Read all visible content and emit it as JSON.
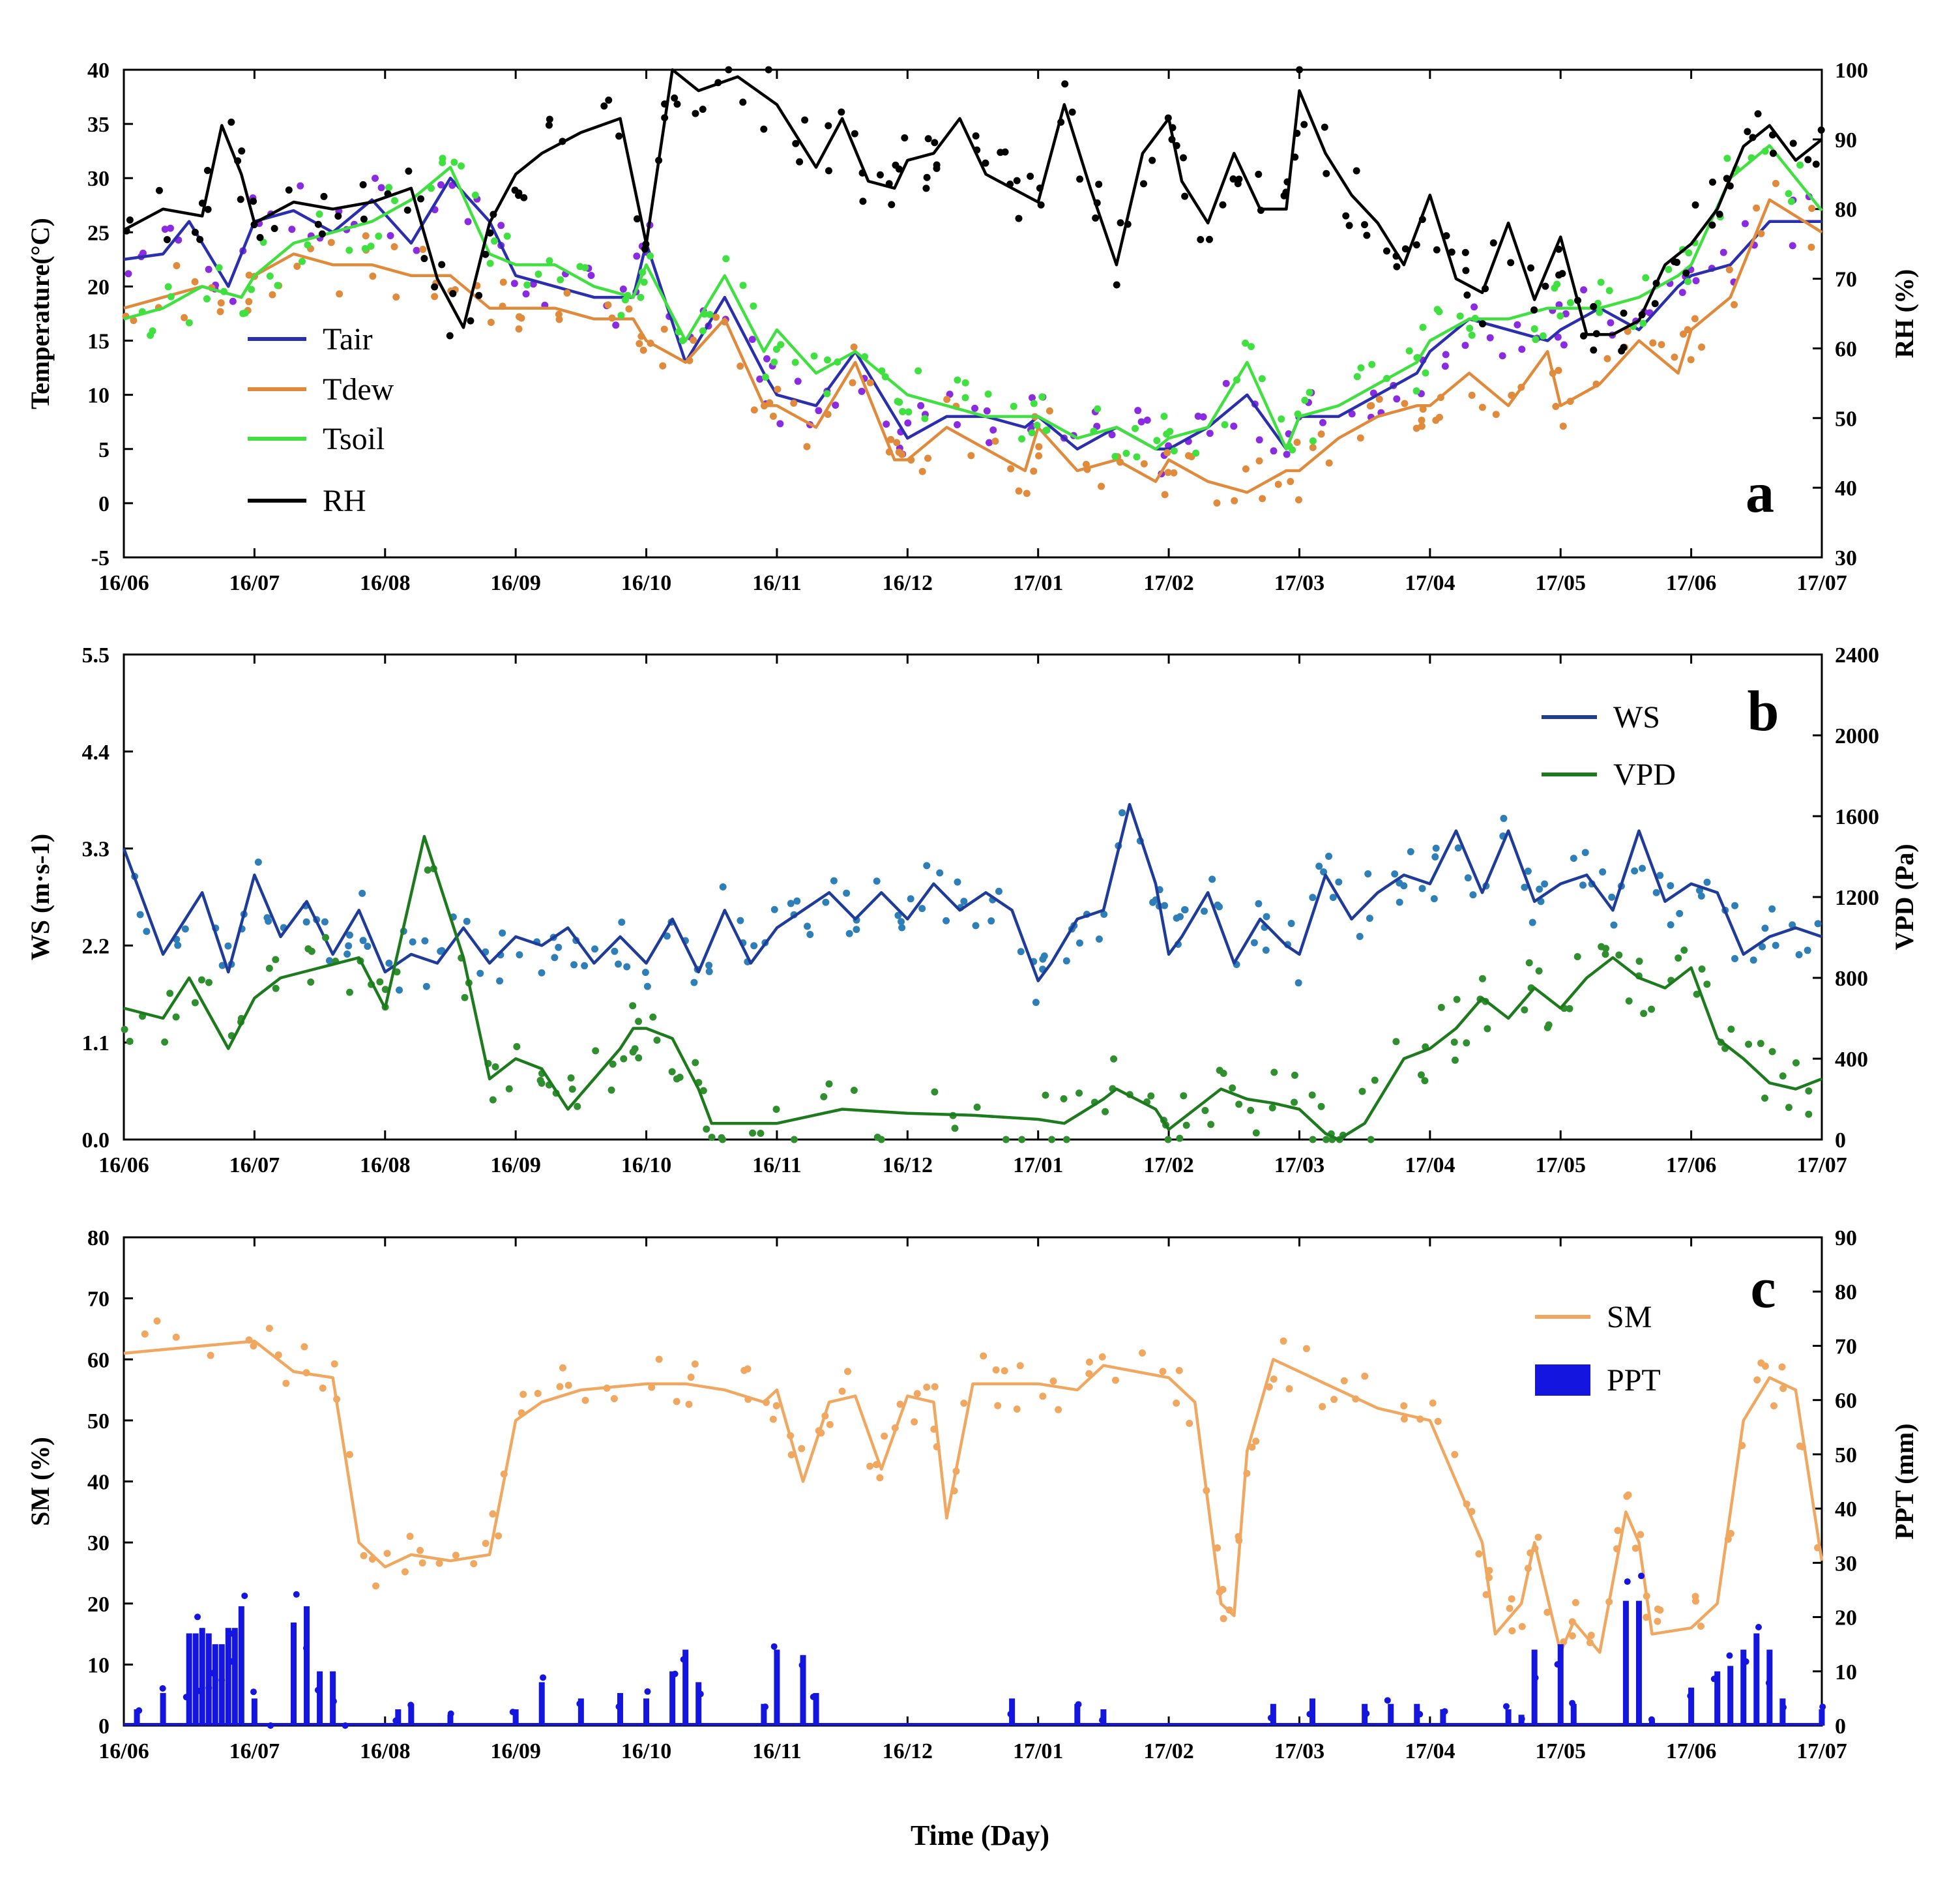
{
  "xlabel": "Time (Day)",
  "xticks": [
    "16/06",
    "16/07",
    "16/08",
    "16/09",
    "16/10",
    "16/11",
    "16/12",
    "17/01",
    "17/02",
    "17/03",
    "17/04",
    "17/05",
    "17/06",
    "17/07"
  ],
  "colors": {
    "Tair": "#2b2fae",
    "Tdew": "#e08a3c",
    "Tsoil": "#3fe040",
    "RH": "#000000",
    "Tair_pts": "#8a2be2",
    "WS": "#1f3c99",
    "WS_pts": "#2e7fb8",
    "VPD": "#1d7a1d",
    "VPD_pts": "#2f8f2f",
    "SM": "#f0a860",
    "PPT": "#1515e0"
  },
  "chart_data": [
    {
      "panel": "a",
      "type": "line",
      "ylabel": "Temperature(°C)",
      "ylim": [
        -5,
        40
      ],
      "yticks": [
        "40",
        "35",
        "30",
        "25",
        "20",
        "15",
        "10",
        "5",
        "0",
        "-5"
      ],
      "y2label": "RH (%)",
      "y2lim": [
        30,
        100
      ],
      "y2ticks": [
        "100",
        "90",
        "80",
        "70",
        "60",
        "50",
        "40",
        "30"
      ],
      "legend": [
        "Tair",
        "Tdew",
        "Tsoil",
        "RH"
      ],
      "series": [
        {
          "name": "Tair",
          "axis": "left",
          "x": [
            0,
            0.3,
            0.5,
            0.8,
            1.0,
            1.3,
            1.6,
            1.9,
            2.2,
            2.5,
            2.8,
            3.0,
            3.3,
            3.6,
            3.9,
            4.0,
            4.3,
            4.6,
            4.9,
            5.0,
            5.3,
            5.6,
            5.9,
            6.0,
            6.3,
            6.6,
            6.9,
            7.0,
            7.3,
            7.6,
            7.9,
            8.0,
            8.3,
            8.6,
            8.9,
            9.0,
            9.3,
            9.6,
            9.9,
            10.0,
            10.3,
            10.6,
            10.9,
            11.0,
            11.3,
            11.6,
            11.9,
            12.0,
            12.3,
            12.6,
            13.0
          ],
          "y": [
            22.5,
            23,
            26,
            20,
            26,
            27,
            25,
            28,
            24,
            30,
            26,
            21,
            20,
            19,
            19,
            24,
            13,
            19,
            12,
            10,
            9,
            14,
            8,
            6,
            8,
            8,
            7,
            8,
            5,
            7,
            5,
            5,
            7,
            10,
            5,
            8,
            8,
            10,
            12,
            14,
            17,
            16,
            15,
            16,
            18,
            16,
            20,
            21,
            22,
            26,
            26
          ]
        },
        {
          "name": "Tdew",
          "axis": "left",
          "x": [
            0,
            0.3,
            0.6,
            0.9,
            1.0,
            1.3,
            1.6,
            1.9,
            2.2,
            2.5,
            2.8,
            3.0,
            3.3,
            3.6,
            3.9,
            4.0,
            4.3,
            4.6,
            4.9,
            5.0,
            5.3,
            5.6,
            5.9,
            6.0,
            6.3,
            6.6,
            6.9,
            7.0,
            7.3,
            7.6,
            7.9,
            8.0,
            8.3,
            8.6,
            8.9,
            9.0,
            9.3,
            9.6,
            9.9,
            10.0,
            10.3,
            10.6,
            10.9,
            11.0,
            11.3,
            11.6,
            11.9,
            12.0,
            12.3,
            12.6,
            13.0
          ],
          "y": [
            18,
            19,
            20,
            19,
            21,
            23,
            22,
            22,
            21,
            21,
            18,
            18,
            18,
            17,
            17,
            15,
            13,
            17,
            9,
            9,
            7,
            13,
            4,
            4,
            7,
            5,
            3,
            7,
            3,
            4,
            2,
            4,
            2,
            1,
            3,
            3,
            6,
            8,
            9,
            9,
            12,
            9,
            14,
            9,
            11,
            15,
            12,
            16,
            19,
            28,
            25
          ]
        },
        {
          "name": "Tsoil",
          "axis": "left",
          "x": [
            0,
            0.3,
            0.6,
            0.9,
            1.0,
            1.3,
            1.6,
            1.9,
            2.2,
            2.5,
            2.8,
            3.0,
            3.3,
            3.6,
            3.9,
            4.0,
            4.3,
            4.6,
            4.9,
            5.0,
            5.3,
            5.6,
            5.9,
            6.0,
            6.3,
            6.6,
            6.9,
            7.0,
            7.3,
            7.6,
            7.9,
            8.0,
            8.3,
            8.6,
            8.9,
            9.0,
            9.3,
            9.6,
            9.9,
            10.0,
            10.3,
            10.6,
            10.9,
            11.0,
            11.3,
            11.6,
            11.9,
            12.0,
            12.3,
            12.6,
            13.0
          ],
          "y": [
            17,
            18,
            20,
            19,
            21,
            24,
            25,
            26,
            28,
            31,
            23,
            22,
            22,
            20,
            19,
            22,
            15,
            21,
            14,
            16,
            12,
            14,
            11,
            10,
            9,
            8,
            8,
            8,
            6,
            7,
            5,
            6,
            7,
            13,
            5,
            8,
            9,
            11,
            13,
            15,
            17,
            17,
            18,
            18,
            18,
            19,
            21,
            22,
            30,
            33,
            27
          ]
        },
        {
          "name": "RH",
          "axis": "right",
          "x": [
            0,
            0.3,
            0.6,
            0.75,
            0.9,
            1.0,
            1.3,
            1.6,
            1.9,
            2.2,
            2.4,
            2.6,
            2.8,
            3.0,
            3.2,
            3.5,
            3.8,
            4.0,
            4.2,
            4.4,
            4.7,
            5.0,
            5.3,
            5.5,
            5.7,
            5.9,
            6.0,
            6.2,
            6.4,
            6.6,
            6.8,
            7.0,
            7.2,
            7.4,
            7.6,
            7.8,
            8.0,
            8.1,
            8.3,
            8.5,
            8.7,
            8.9,
            9.0,
            9.2,
            9.4,
            9.6,
            9.8,
            10.0,
            10.2,
            10.4,
            10.6,
            10.8,
            11.0,
            11.2,
            11.4,
            11.6,
            11.8,
            12.0,
            12.2,
            12.4,
            12.6,
            12.8,
            13.0
          ],
          "y": [
            77,
            80,
            79,
            92,
            85,
            78,
            81,
            80,
            81,
            83,
            70,
            63,
            78,
            85,
            88,
            91,
            93,
            75,
            100,
            97,
            99,
            95,
            86,
            93,
            84,
            83,
            87,
            88,
            93,
            85,
            83,
            81,
            95,
            83,
            72,
            88,
            93,
            84,
            78,
            88,
            80,
            80,
            97,
            88,
            82,
            78,
            72,
            82,
            70,
            68,
            78,
            67,
            76,
            62,
            62,
            64,
            72,
            75,
            80,
            89,
            92,
            87,
            90
          ]
        }
      ]
    },
    {
      "panel": "b",
      "type": "line",
      "ylabel": "WS (m·s-1)",
      "ylim": [
        0,
        5.5
      ],
      "yticks": [
        "5.5",
        "4.4",
        "3.3",
        "2.2",
        "1.1",
        "0.0"
      ],
      "y2label": "VPD (Pa)",
      "y2lim": [
        0,
        2400
      ],
      "y2ticks": [
        "2400",
        "2000",
        "1600",
        "1200",
        "800",
        "400",
        "0"
      ],
      "legend": [
        "WS",
        "VPD"
      ],
      "series": [
        {
          "name": "WS",
          "axis": "left",
          "x": [
            0,
            0.3,
            0.6,
            0.8,
            1.0,
            1.2,
            1.4,
            1.6,
            1.8,
            2.0,
            2.2,
            2.4,
            2.6,
            2.8,
            3.0,
            3.2,
            3.4,
            3.6,
            3.8,
            4.0,
            4.2,
            4.4,
            4.6,
            4.8,
            5.0,
            5.2,
            5.4,
            5.6,
            5.8,
            6.0,
            6.2,
            6.4,
            6.6,
            6.8,
            7.0,
            7.1,
            7.3,
            7.5,
            7.7,
            7.9,
            8.0,
            8.1,
            8.3,
            8.5,
            8.7,
            8.9,
            9.0,
            9.2,
            9.4,
            9.6,
            9.8,
            10.0,
            10.2,
            10.4,
            10.6,
            10.8,
            11.0,
            11.2,
            11.4,
            11.6,
            11.8,
            12.0,
            12.2,
            12.4,
            12.6,
            12.8,
            13.0
          ],
          "y": [
            3.3,
            2.1,
            2.8,
            1.9,
            3.0,
            2.3,
            2.7,
            2.1,
            2.6,
            1.9,
            2.1,
            2.0,
            2.4,
            2.0,
            2.3,
            2.2,
            2.4,
            2.0,
            2.3,
            2.0,
            2.5,
            1.9,
            2.6,
            2.0,
            2.4,
            2.6,
            2.8,
            2.5,
            2.8,
            2.5,
            2.9,
            2.6,
            2.8,
            2.6,
            1.8,
            2.0,
            2.5,
            2.6,
            3.8,
            2.9,
            2.1,
            2.3,
            2.8,
            2.0,
            2.5,
            2.2,
            2.1,
            3.0,
            2.5,
            2.8,
            3.0,
            2.9,
            3.5,
            2.8,
            3.5,
            2.7,
            2.9,
            3.0,
            2.6,
            3.5,
            2.7,
            2.9,
            2.8,
            2.1,
            2.3,
            2.4,
            2.3
          ]
        },
        {
          "name": "VPD",
          "axis": "right",
          "x": [
            0,
            0.3,
            0.5,
            0.8,
            1.0,
            1.2,
            1.5,
            1.8,
            2.0,
            2.3,
            2.6,
            2.8,
            3.0,
            3.2,
            3.4,
            3.6,
            3.8,
            3.9,
            4.0,
            4.2,
            4.4,
            4.5,
            4.6,
            5.0,
            5.5,
            6.0,
            6.5,
            7.0,
            7.2,
            7.5,
            7.6,
            7.9,
            8.0,
            8.2,
            8.4,
            8.6,
            8.8,
            9.0,
            9.2,
            9.3,
            9.5,
            9.8,
            10.0,
            10.2,
            10.4,
            10.6,
            10.8,
            11.0,
            11.2,
            11.4,
            11.6,
            11.8,
            12.0,
            12.2,
            12.4,
            12.6,
            12.8,
            13.0
          ],
          "y": [
            650,
            600,
            800,
            450,
            700,
            800,
            850,
            900,
            650,
            1500,
            900,
            300,
            400,
            350,
            150,
            300,
            450,
            550,
            550,
            500,
            250,
            80,
            80,
            80,
            150,
            130,
            120,
            100,
            80,
            200,
            250,
            150,
            50,
            150,
            250,
            200,
            180,
            150,
            30,
            0,
            80,
            400,
            450,
            550,
            700,
            600,
            750,
            650,
            800,
            900,
            800,
            750,
            850,
            500,
            400,
            280,
            250,
            300
          ]
        }
      ]
    },
    {
      "panel": "c",
      "type": "line",
      "ylabel": "SM (%)",
      "ylim": [
        0,
        80
      ],
      "yticks": [
        "80",
        "70",
        "60",
        "50",
        "40",
        "30",
        "20",
        "10",
        "0"
      ],
      "y2label": "PPT (mm)",
      "y2lim": [
        0,
        90
      ],
      "y2ticks": [
        "90",
        "80",
        "70",
        "60",
        "50",
        "40",
        "30",
        "20",
        "10",
        "0"
      ],
      "legend": [
        "SM",
        "PPT"
      ],
      "series": [
        {
          "name": "SM",
          "axis": "left",
          "x": [
            0,
            0.5,
            1.0,
            1.3,
            1.6,
            1.8,
            2.0,
            2.2,
            2.5,
            2.8,
            3.0,
            3.2,
            3.5,
            4.0,
            4.3,
            4.6,
            4.9,
            5.0,
            5.2,
            5.4,
            5.6,
            5.8,
            6.0,
            6.2,
            6.3,
            6.5,
            6.7,
            7.0,
            7.3,
            7.5,
            8.0,
            8.2,
            8.4,
            8.5,
            8.6,
            8.8,
            9.0,
            9.3,
            9.6,
            10.0,
            10.2,
            10.4,
            10.5,
            10.7,
            10.8,
            11.0,
            11.1,
            11.3,
            11.5,
            11.6,
            11.7,
            12.0,
            12.2,
            12.4,
            12.6,
            12.8,
            13.0
          ],
          "y": [
            61,
            62,
            63,
            58,
            57,
            30,
            26,
            28,
            27,
            28,
            50,
            53,
            55,
            56,
            56,
            55,
            53,
            55,
            40,
            53,
            54,
            42,
            54,
            53,
            34,
            56,
            56,
            56,
            55,
            59,
            57,
            53,
            20,
            18,
            45,
            60,
            58,
            55,
            52,
            50,
            40,
            30,
            15,
            20,
            30,
            12,
            17,
            12,
            35,
            30,
            15,
            16,
            20,
            50,
            57,
            55,
            27
          ]
        },
        {
          "name": "PPT",
          "axis": "right",
          "type": "bar",
          "x": [
            0.1,
            0.3,
            0.5,
            0.55,
            0.6,
            0.65,
            0.7,
            0.75,
            0.8,
            0.85,
            0.9,
            1.0,
            1.1,
            1.3,
            1.4,
            1.5,
            1.6,
            1.7,
            2.1,
            2.2,
            2.5,
            3.0,
            3.2,
            3.5,
            3.8,
            4.0,
            4.2,
            4.3,
            4.4,
            4.9,
            5.0,
            5.2,
            5.3,
            6.8,
            7.3,
            7.5,
            8.8,
            9.1,
            9.5,
            9.7,
            9.9,
            10.1,
            10.6,
            10.7,
            10.8,
            11.0,
            11.1,
            11.5,
            11.6,
            11.7,
            12.0,
            12.2,
            12.3,
            12.4,
            12.5,
            12.6,
            12.7,
            13.0
          ],
          "y": [
            3,
            6,
            17,
            17,
            18,
            17,
            15,
            15,
            18,
            18,
            22,
            5,
            0,
            19,
            22,
            10,
            10,
            0,
            3,
            4,
            2,
            3,
            8,
            5,
            6,
            5,
            10,
            14,
            8,
            4,
            14,
            13,
            6,
            5,
            4,
            3,
            4,
            5,
            4,
            4,
            4,
            3,
            3,
            2,
            14,
            15,
            4,
            23,
            23,
            1,
            7,
            10,
            11,
            14,
            17,
            14,
            5,
            3
          ]
        }
      ]
    }
  ]
}
